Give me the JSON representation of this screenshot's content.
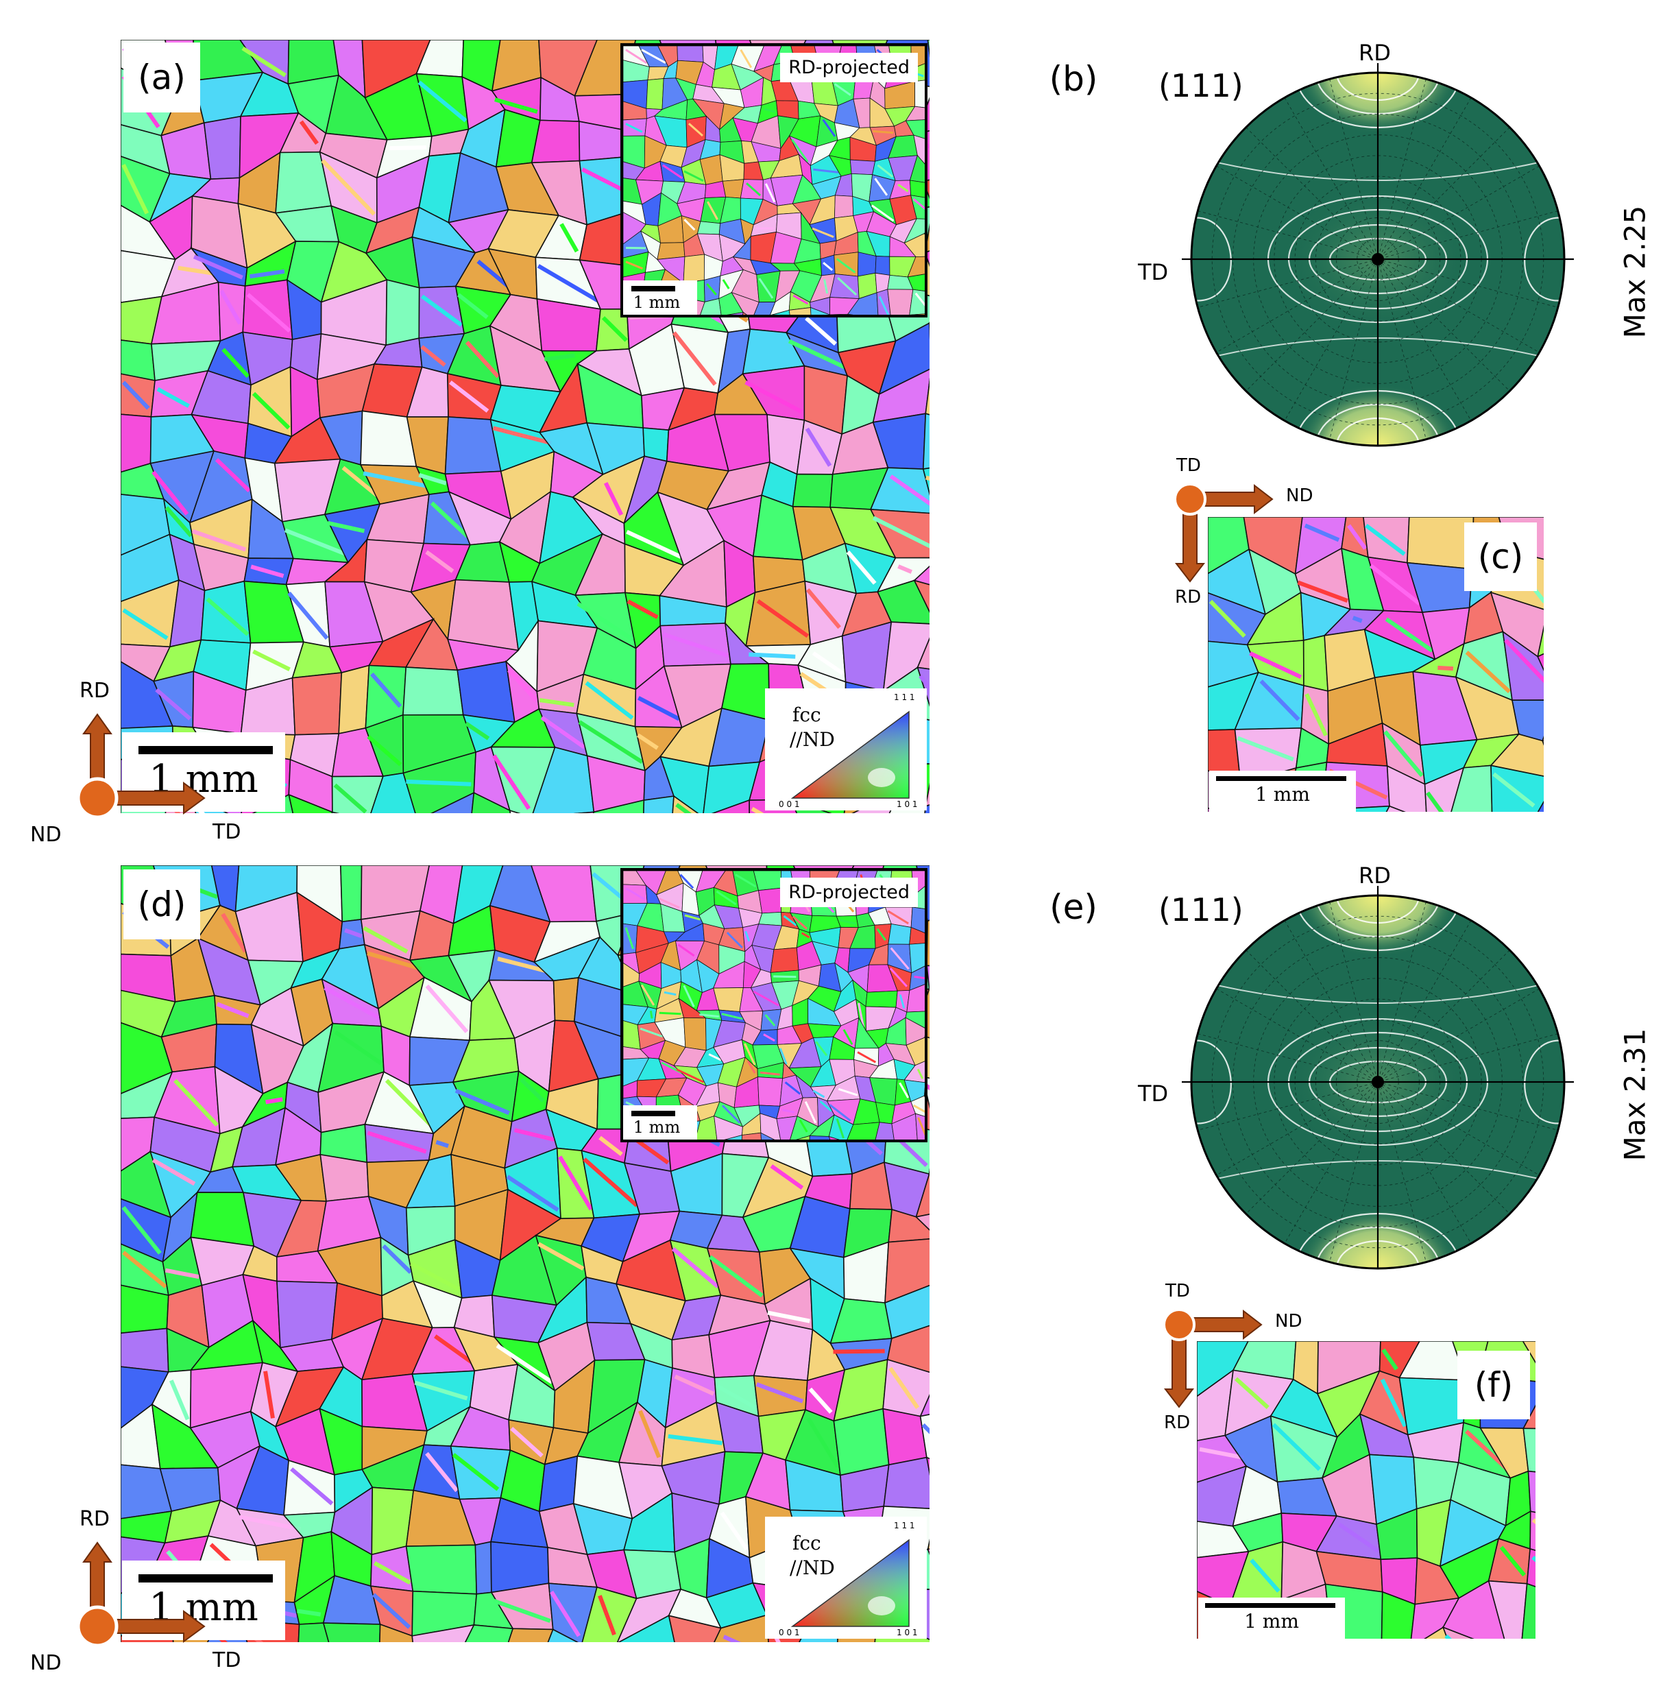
{
  "panels": {
    "a": {
      "label": "(a)",
      "inset_tag": "RD-projected",
      "inset_scale": "1 mm",
      "scale": "1 mm",
      "legend": {
        "phase": "fcc",
        "direction": "//ND",
        "corner_top": "1 1 1",
        "corner_left": "0 0 1",
        "corner_right": "1 0 1"
      }
    },
    "b": {
      "label": "(b)",
      "plane": "(111)",
      "top": "RD",
      "left": "TD",
      "max": "Max 2.25"
    },
    "c": {
      "label": "(c)",
      "scale": "1 mm"
    },
    "d": {
      "label": "(d)",
      "inset_tag": "RD-projected",
      "inset_scale": "1 mm",
      "scale": "1 mm",
      "legend": {
        "phase": "fcc",
        "direction": "//ND",
        "corner_top": "1 1 1",
        "corner_left": "0 0 1",
        "corner_right": "1 0 1"
      }
    },
    "e": {
      "label": "(e)",
      "plane": "(111)",
      "top": "RD",
      "left": "TD",
      "max": "Max 2.31"
    },
    "f": {
      "label": "(f)",
      "scale": "1 mm"
    }
  },
  "axes_main": {
    "up": "RD",
    "origin": "ND",
    "right": "TD"
  },
  "axes_small": {
    "origin": "TD",
    "right": "ND",
    "down": "RD"
  },
  "colors": {
    "arrow_fill": "#b9531a",
    "arrow_edge": "#6b2a08",
    "origin_dot": "#e0661c",
    "pf_background": "#1d6b52",
    "pf_peak": "#f3f07a",
    "ipf_red": "#ff2020",
    "ipf_green": "#20ff40",
    "ipf_blue": "#3040ff"
  }
}
